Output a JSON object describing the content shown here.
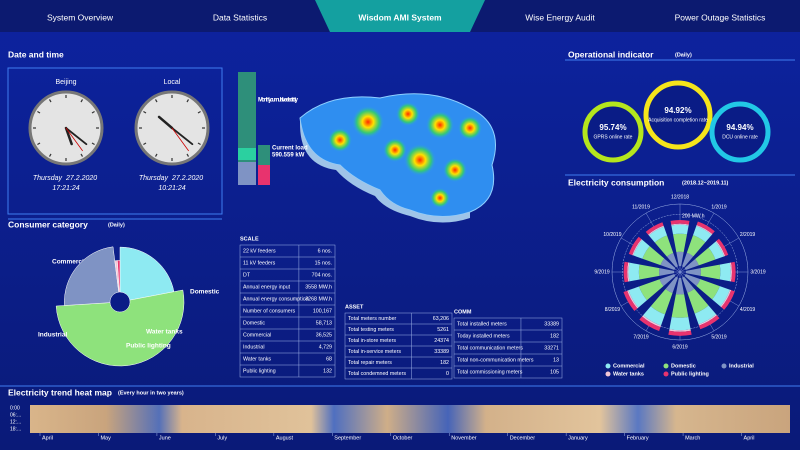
{
  "nav": {
    "tabs": [
      "System Overview",
      "Data Statistics",
      "Wisdom AMI System",
      "Wise Energy Audit",
      "Power Outage Statistics"
    ],
    "active": 2
  },
  "datetime": {
    "title": "Date and time",
    "clocks": [
      {
        "city": "Beijing",
        "day": "Thursday",
        "date": "27.2.2020",
        "time": "17:21:24"
      },
      {
        "city": "Local",
        "day": "Thursday",
        "date": "27.2.2020",
        "time": "10:21:24"
      }
    ]
  },
  "consumer_category": {
    "title": "Consumer category",
    "subtitle": "(Daily)",
    "chart_data": {
      "type": "pie",
      "categories": [
        "Commercial",
        "Domestic",
        "Industrial",
        "Water tanks",
        "Public lighting"
      ],
      "values": [
        22,
        52,
        24,
        1,
        1
      ],
      "colors": [
        "#8eeaf2",
        "#8ee27c",
        "#7f93c4",
        "#f2c6d6",
        "#e8336e"
      ]
    }
  },
  "monthly": {
    "title": "Monthly cumulative electricity",
    "load_label": "Current load",
    "load_value": "590.559 kW"
  },
  "scale": {
    "title": "SCALE",
    "rows": [
      [
        "22 kV feeders",
        "6 nos."
      ],
      [
        "11 kV feeders",
        "15 nos."
      ],
      [
        "DT",
        "704 nos."
      ],
      [
        "Annual energy input",
        "3558 MW.h"
      ],
      [
        "Annual energy consumption",
        "3268 MW.h"
      ],
      [
        "Number of consumers",
        "100,167"
      ],
      [
        "Domestic",
        "58,713"
      ],
      [
        "Commercial",
        "36,525"
      ],
      [
        "Industrial",
        "4,729"
      ],
      [
        "Water tanks",
        "68"
      ],
      [
        "Public lighting",
        "132"
      ]
    ]
  },
  "asset": {
    "title": "ASSET",
    "rows": [
      [
        "Total meters number",
        "63,206"
      ],
      [
        "Total testing meters",
        "5261"
      ],
      [
        "Total in-store meters",
        "24374"
      ],
      [
        "Total in-service meters",
        "33389"
      ],
      [
        "Total repair meters",
        "182"
      ],
      [
        "Total condemned meters",
        "0"
      ]
    ]
  },
  "comm": {
    "title": "COMM",
    "rows": [
      [
        "Total installed meters",
        "33389"
      ],
      [
        "Today installed meters",
        "182"
      ],
      [
        "Total communication meters",
        "33271"
      ],
      [
        "Total non-communication meters",
        "13"
      ],
      [
        "Total commissioning meters",
        "105"
      ]
    ]
  },
  "operational": {
    "title": "Operational indicator",
    "subtitle": "(Daily)",
    "rings": [
      {
        "value": "95.74%",
        "label": "GPRS online rate",
        "color": "#b5e61d"
      },
      {
        "value": "94.92%",
        "label": "Acquisition completion rate",
        "color": "#f5e51b"
      },
      {
        "value": "94.94%",
        "label": "DCU online rate",
        "color": "#22c8e6"
      }
    ]
  },
  "consumption": {
    "title": "Electricity consumption",
    "subtitle": "(2018.12~2019.11)",
    "chart_data": {
      "type": "radial-bar",
      "categories": [
        "12/2018",
        "1/2019",
        "2/2019",
        "3/2019",
        "4/2019",
        "5/2019",
        "6/2019",
        "7/2019",
        "8/2019",
        "9/2019",
        "10/2019",
        "11/2019"
      ],
      "series": [
        {
          "name": "Commercial",
          "color": "#8eeaf2",
          "values": [
            35,
            38,
            36,
            40,
            42,
            45,
            48,
            46,
            44,
            40,
            38,
            36
          ]
        },
        {
          "name": "Domestic",
          "color": "#8ee27c",
          "values": [
            70,
            72,
            68,
            75,
            80,
            85,
            90,
            88,
            84,
            78,
            74,
            72
          ]
        },
        {
          "name": "Industrial",
          "color": "#7f93c4",
          "values": [
            55,
            56,
            54,
            58,
            60,
            62,
            64,
            63,
            61,
            58,
            57,
            55
          ]
        },
        {
          "name": "Water tanks",
          "color": "#f2c6d6",
          "values": [
            4,
            4,
            4,
            5,
            5,
            5,
            6,
            6,
            5,
            5,
            4,
            4
          ]
        },
        {
          "name": "Public lighting",
          "color": "#e8336e",
          "values": [
            14,
            14,
            13,
            14,
            15,
            15,
            16,
            16,
            15,
            14,
            14,
            14
          ]
        }
      ],
      "rlim": [
        0,
        240
      ],
      "rticks": [
        {
          "value": 200,
          "label": "200 MW.h"
        }
      ]
    }
  },
  "heatmap": {
    "title": "Electricity trend heat map",
    "subtitle": "(Every hour in two years)",
    "yticks": [
      "0:00",
      "06:...",
      "12:...",
      "18:..."
    ],
    "months": [
      "April",
      "May",
      "June",
      "July",
      "August",
      "September",
      "October",
      "November",
      "December",
      "January",
      "February",
      "March",
      "April"
    ]
  }
}
